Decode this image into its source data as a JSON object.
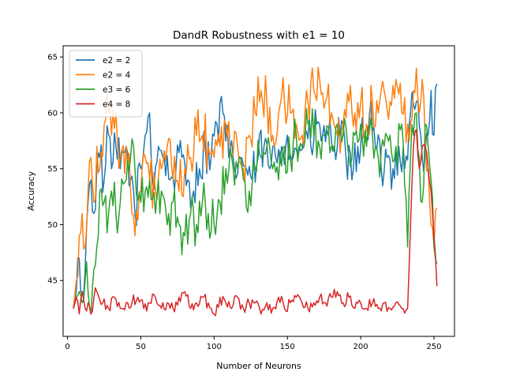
{
  "chart_data": {
    "type": "line",
    "title": "DandR Robustness with e1 = 10",
    "xlabel": "Number of Neurons",
    "ylabel": "Accuracy",
    "xlim": [
      -3,
      264
    ],
    "ylim": [
      40.0,
      66.0
    ],
    "xticks": [
      0,
      50,
      100,
      150,
      200,
      250
    ],
    "yticks": [
      45,
      50,
      55,
      60,
      65
    ],
    "grid": false,
    "legend": "top-left",
    "series": [
      {
        "name": "e2 = 2",
        "color": "#1f77b4",
        "anchors": [
          [
            4,
            42.5
          ],
          [
            6,
            44
          ],
          [
            8,
            47
          ],
          [
            10,
            44
          ],
          [
            12,
            46
          ],
          [
            14,
            52
          ],
          [
            16,
            54
          ],
          [
            18,
            51
          ],
          [
            20,
            55
          ],
          [
            22,
            56
          ],
          [
            25,
            54
          ],
          [
            28,
            58
          ],
          [
            30,
            55
          ],
          [
            33,
            57
          ],
          [
            36,
            55
          ],
          [
            40,
            57
          ],
          [
            43,
            54
          ],
          [
            46,
            51
          ],
          [
            50,
            55
          ],
          [
            53,
            58
          ],
          [
            56,
            60
          ],
          [
            58,
            54
          ],
          [
            62,
            57
          ],
          [
            66,
            56
          ],
          [
            70,
            54
          ],
          [
            74,
            55
          ],
          [
            78,
            56
          ],
          [
            82,
            54
          ],
          [
            86,
            53
          ],
          [
            90,
            55
          ],
          [
            94,
            57
          ],
          [
            98,
            56
          ],
          [
            102,
            59
          ],
          [
            106,
            60
          ],
          [
            110,
            56
          ],
          [
            114,
            55
          ],
          [
            118,
            56
          ],
          [
            122,
            55
          ],
          [
            126,
            54
          ],
          [
            130,
            56
          ],
          [
            134,
            57
          ],
          [
            138,
            55
          ],
          [
            142,
            56
          ],
          [
            146,
            57
          ],
          [
            150,
            58
          ],
          [
            154,
            56
          ],
          [
            158,
            57
          ],
          [
            162,
            58
          ],
          [
            166,
            57
          ],
          [
            170,
            59
          ],
          [
            174,
            58
          ],
          [
            178,
            58
          ],
          [
            182,
            57
          ],
          [
            186,
            58
          ],
          [
            190,
            56
          ],
          [
            194,
            54
          ],
          [
            198,
            57
          ],
          [
            202,
            58
          ],
          [
            206,
            60
          ],
          [
            210,
            57
          ],
          [
            214,
            55
          ],
          [
            218,
            56
          ],
          [
            222,
            55
          ],
          [
            226,
            57
          ],
          [
            230,
            55
          ],
          [
            234,
            60
          ],
          [
            238,
            61
          ],
          [
            242,
            56
          ],
          [
            246,
            58
          ],
          [
            248,
            62
          ],
          [
            250,
            58
          ],
          [
            252,
            62.6
          ]
        ]
      },
      {
        "name": "e2 = 4",
        "color": "#ff7f0e",
        "anchors": [
          [
            4,
            42.5
          ],
          [
            6,
            45
          ],
          [
            8,
            49
          ],
          [
            10,
            51
          ],
          [
            12,
            48
          ],
          [
            14,
            53
          ],
          [
            16,
            56
          ],
          [
            18,
            52
          ],
          [
            20,
            57
          ],
          [
            22,
            55
          ],
          [
            25,
            59
          ],
          [
            28,
            60
          ],
          [
            30,
            58
          ],
          [
            33,
            60
          ],
          [
            36,
            56
          ],
          [
            40,
            57
          ],
          [
            43,
            53
          ],
          [
            46,
            49
          ],
          [
            50,
            53
          ],
          [
            53,
            56
          ],
          [
            56,
            54
          ],
          [
            60,
            53
          ],
          [
            64,
            55
          ],
          [
            68,
            57
          ],
          [
            72,
            54
          ],
          [
            76,
            53
          ],
          [
            80,
            55
          ],
          [
            84,
            56
          ],
          [
            88,
            58
          ],
          [
            92,
            58
          ],
          [
            96,
            57
          ],
          [
            100,
            56
          ],
          [
            104,
            57
          ],
          [
            108,
            59
          ],
          [
            112,
            56
          ],
          [
            116,
            57
          ],
          [
            120,
            55
          ],
          [
            124,
            58
          ],
          [
            128,
            60
          ],
          [
            132,
            62
          ],
          [
            136,
            61
          ],
          [
            140,
            58
          ],
          [
            144,
            60
          ],
          [
            148,
            61
          ],
          [
            152,
            60
          ],
          [
            156,
            59
          ],
          [
            160,
            58
          ],
          [
            164,
            61
          ],
          [
            168,
            62
          ],
          [
            172,
            63
          ],
          [
            176,
            61
          ],
          [
            180,
            60
          ],
          [
            184,
            58
          ],
          [
            188,
            59
          ],
          [
            192,
            61
          ],
          [
            196,
            60
          ],
          [
            200,
            61
          ],
          [
            204,
            59
          ],
          [
            208,
            61
          ],
          [
            212,
            60
          ],
          [
            216,
            62
          ],
          [
            220,
            61
          ],
          [
            224,
            63
          ],
          [
            228,
            60
          ],
          [
            232,
            59
          ],
          [
            236,
            62
          ],
          [
            238,
            64
          ],
          [
            240,
            60
          ],
          [
            242,
            63
          ],
          [
            244,
            58
          ],
          [
            246,
            55
          ],
          [
            248,
            50
          ],
          [
            250,
            48
          ],
          [
            252,
            51.5
          ]
        ]
      },
      {
        "name": "e3 = 6",
        "color": "#2ca02c",
        "anchors": [
          [
            4,
            42.5
          ],
          [
            6,
            43.5
          ],
          [
            8,
            44
          ],
          [
            10,
            43
          ],
          [
            12,
            45
          ],
          [
            14,
            44
          ],
          [
            16,
            42
          ],
          [
            18,
            46
          ],
          [
            20,
            48
          ],
          [
            22,
            53
          ],
          [
            25,
            52
          ],
          [
            28,
            51
          ],
          [
            30,
            53
          ],
          [
            33,
            51
          ],
          [
            36,
            52
          ],
          [
            40,
            54
          ],
          [
            43,
            56
          ],
          [
            46,
            55
          ],
          [
            50,
            52
          ],
          [
            53,
            53
          ],
          [
            56,
            54
          ],
          [
            60,
            51
          ],
          [
            64,
            53
          ],
          [
            68,
            50
          ],
          [
            72,
            52
          ],
          [
            76,
            50
          ],
          [
            80,
            49
          ],
          [
            84,
            51
          ],
          [
            88,
            50
          ],
          [
            92,
            52
          ],
          [
            96,
            51
          ],
          [
            100,
            50
          ],
          [
            104,
            52
          ],
          [
            108,
            55
          ],
          [
            112,
            56
          ],
          [
            116,
            55
          ],
          [
            120,
            54
          ],
          [
            124,
            53
          ],
          [
            128,
            55
          ],
          [
            132,
            56
          ],
          [
            136,
            57
          ],
          [
            140,
            55
          ],
          [
            144,
            54
          ],
          [
            148,
            57
          ],
          [
            152,
            56
          ],
          [
            156,
            58
          ],
          [
            160,
            57
          ],
          [
            164,
            59
          ],
          [
            168,
            58
          ],
          [
            172,
            57
          ],
          [
            176,
            58
          ],
          [
            180,
            57
          ],
          [
            184,
            59
          ],
          [
            188,
            58
          ],
          [
            192,
            56
          ],
          [
            196,
            58
          ],
          [
            200,
            59
          ],
          [
            204,
            57
          ],
          [
            208,
            58
          ],
          [
            212,
            56
          ],
          [
            216,
            57
          ],
          [
            220,
            58
          ],
          [
            224,
            57
          ],
          [
            228,
            59
          ],
          [
            232,
            48
          ],
          [
            234,
            56
          ],
          [
            236,
            58
          ],
          [
            238,
            60
          ],
          [
            240,
            56
          ],
          [
            242,
            52
          ],
          [
            244,
            59
          ],
          [
            246,
            57
          ],
          [
            248,
            54
          ],
          [
            250,
            48
          ],
          [
            252,
            46.5
          ]
        ]
      },
      {
        "name": "e4 = 8",
        "color": "#d62728",
        "anchors": [
          [
            4,
            42.5
          ],
          [
            6,
            43.5
          ],
          [
            8,
            42
          ],
          [
            10,
            44
          ],
          [
            12,
            42.5
          ],
          [
            14,
            43
          ],
          [
            16,
            42
          ],
          [
            18,
            43.5
          ],
          [
            20,
            44
          ],
          [
            24,
            43
          ],
          [
            28,
            42.5
          ],
          [
            32,
            43.5
          ],
          [
            36,
            42.5
          ],
          [
            40,
            43
          ],
          [
            44,
            43
          ],
          [
            48,
            43.5
          ],
          [
            52,
            42.5
          ],
          [
            56,
            43
          ],
          [
            60,
            43.5
          ],
          [
            64,
            42.5
          ],
          [
            68,
            43
          ],
          [
            72,
            42.5
          ],
          [
            76,
            43.5
          ],
          [
            80,
            44
          ],
          [
            84,
            42.5
          ],
          [
            88,
            43
          ],
          [
            92,
            43.5
          ],
          [
            96,
            43
          ],
          [
            100,
            42
          ],
          [
            104,
            43.5
          ],
          [
            108,
            43
          ],
          [
            112,
            42.5
          ],
          [
            116,
            43.5
          ],
          [
            120,
            42.5
          ],
          [
            124,
            43
          ],
          [
            128,
            43
          ],
          [
            132,
            42
          ],
          [
            136,
            43
          ],
          [
            140,
            42.5
          ],
          [
            144,
            43.5
          ],
          [
            148,
            42.5
          ],
          [
            152,
            43
          ],
          [
            156,
            43.5
          ],
          [
            160,
            43
          ],
          [
            164,
            42.5
          ],
          [
            168,
            43
          ],
          [
            172,
            43.5
          ],
          [
            176,
            43
          ],
          [
            180,
            43.5
          ],
          [
            184,
            44
          ],
          [
            188,
            43
          ],
          [
            192,
            43.5
          ],
          [
            196,
            42.5
          ],
          [
            200,
            43
          ],
          [
            204,
            42.5
          ],
          [
            208,
            43
          ],
          [
            212,
            42.5
          ],
          [
            216,
            43
          ],
          [
            220,
            42.5
          ],
          [
            224,
            43
          ],
          [
            228,
            42.5
          ],
          [
            232,
            42.5
          ],
          [
            234,
            50
          ],
          [
            236,
            57
          ],
          [
            238,
            58.5
          ],
          [
            240,
            55
          ],
          [
            242,
            57
          ],
          [
            244,
            57
          ],
          [
            246,
            55
          ],
          [
            248,
            53
          ],
          [
            250,
            49
          ],
          [
            252,
            44.5
          ]
        ]
      }
    ]
  }
}
